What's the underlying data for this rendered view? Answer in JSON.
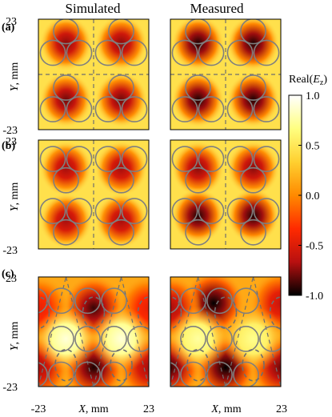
{
  "headers": {
    "left": "Simulated",
    "right": "Measured"
  },
  "row_labels": [
    "(a)",
    "(b)",
    "(c)"
  ],
  "ytitle_parts": [
    "Y",
    ", mm"
  ],
  "xtitle_parts": [
    "X",
    ", mm"
  ],
  "colorbar": {
    "title_base": "Real(",
    "title_sym": "E",
    "title_sub": "z",
    "title_end": ")",
    "ticks": [
      "1.0",
      "0.5",
      "0.0",
      "-0.5",
      "-1.0"
    ],
    "range": [
      -1.0,
      1.0
    ],
    "colormap": [
      "#000000",
      "#b81010",
      "#ff2a00",
      "#ff8a00",
      "#ffd030",
      "#ffff80",
      "#ffffff"
    ]
  },
  "chart_data": [
    {
      "type": "heatmap",
      "title": "Simulated",
      "row": "(a)",
      "ylabel": "Y, mm",
      "xlim": [
        -23,
        23
      ],
      "ylim": [
        -23,
        23
      ],
      "yticks": [
        "23",
        "-23"
      ],
      "value_range": [
        -1.0,
        1.0
      ],
      "lobes": [
        {
          "x": -11.5,
          "y": 13,
          "v": -0.75
        },
        {
          "x": 11.5,
          "y": 13,
          "v": -0.75
        },
        {
          "x": -11.5,
          "y": -10.5,
          "v": -0.8
        },
        {
          "x": 11.5,
          "y": -10.5,
          "v": -0.8
        }
      ]
    },
    {
      "type": "heatmap",
      "title": "Measured",
      "row": "(a)",
      "xlim": [
        -23,
        23
      ],
      "ylim": [
        -23,
        23
      ],
      "value_range": [
        -1.0,
        1.0
      ],
      "lobes": [
        {
          "x": -11.5,
          "y": 13,
          "v": -0.95
        },
        {
          "x": 11.5,
          "y": 13,
          "v": -0.95
        },
        {
          "x": -11.5,
          "y": -10.5,
          "v": -0.95
        },
        {
          "x": 11.5,
          "y": -10.5,
          "v": -0.95
        }
      ]
    },
    {
      "type": "heatmap",
      "title": "Simulated",
      "row": "(b)",
      "ylabel": "Y, mm",
      "xlim": [
        -23,
        23
      ],
      "ylim": [
        -23,
        23
      ],
      "yticks": [
        "23",
        "-23"
      ],
      "value_range": [
        -1.0,
        1.0
      ],
      "lobes": [
        {
          "x": -11.5,
          "y": 11,
          "v": -0.7
        },
        {
          "x": 11.5,
          "y": 11,
          "v": -0.7
        },
        {
          "x": -11.5,
          "y": -11,
          "v": -0.7
        },
        {
          "x": 11.5,
          "y": -11,
          "v": -0.7
        }
      ]
    },
    {
      "type": "heatmap",
      "title": "Measured",
      "row": "(b)",
      "xlim": [
        -23,
        23
      ],
      "ylim": [
        -23,
        23
      ],
      "value_range": [
        -1.0,
        1.0
      ],
      "lobes": [
        {
          "x": -11.5,
          "y": 11,
          "v": -0.75
        },
        {
          "x": 11.5,
          "y": 11,
          "v": -0.75
        },
        {
          "x": -11.5,
          "y": -9,
          "v": -0.95
        },
        {
          "x": 11.5,
          "y": -9,
          "v": -0.95
        }
      ]
    },
    {
      "type": "heatmap",
      "title": "Simulated",
      "row": "(c)",
      "ylabel": "Y, mm",
      "xlabel": "X, mm",
      "xlim": [
        -23,
        23
      ],
      "ylim": [
        -23,
        23
      ],
      "xticks": [
        "-23",
        "23"
      ],
      "yticks": [
        "23",
        "-23"
      ],
      "value_range": [
        -1.0,
        1.0
      ],
      "lobes": [
        {
          "x": 0,
          "y": 10,
          "v": -0.9
        },
        {
          "x": -23,
          "y": 10,
          "v": -0.45
        },
        {
          "x": 23,
          "y": 10,
          "v": -0.45
        },
        {
          "x": 0,
          "y": -15,
          "v": -0.95
        },
        {
          "x": -23,
          "y": -15,
          "v": -0.7
        },
        {
          "x": 23,
          "y": -15,
          "v": -0.7
        },
        {
          "x": -11.5,
          "y": -3,
          "v": 0.9
        },
        {
          "x": 11.5,
          "y": -3,
          "v": 0.9
        }
      ]
    },
    {
      "type": "heatmap",
      "title": "Measured",
      "row": "(c)",
      "xlabel": "X, mm",
      "xlim": [
        -23,
        23
      ],
      "ylim": [
        -23,
        23
      ],
      "xticks": [
        "",
        "23"
      ],
      "value_range": [
        -1.0,
        1.0
      ],
      "lobes": [
        {
          "x": -5,
          "y": 12,
          "v": -1.0
        },
        {
          "x": -23,
          "y": 10,
          "v": -0.7
        },
        {
          "x": 23,
          "y": 12,
          "v": -0.6
        },
        {
          "x": 0,
          "y": -15,
          "v": -1.0
        },
        {
          "x": -23,
          "y": -15,
          "v": -0.9
        },
        {
          "x": 23,
          "y": -15,
          "v": -0.8
        },
        {
          "x": -11.5,
          "y": -3,
          "v": 0.75
        },
        {
          "x": 11.5,
          "y": -3,
          "v": 0.7
        }
      ]
    }
  ]
}
